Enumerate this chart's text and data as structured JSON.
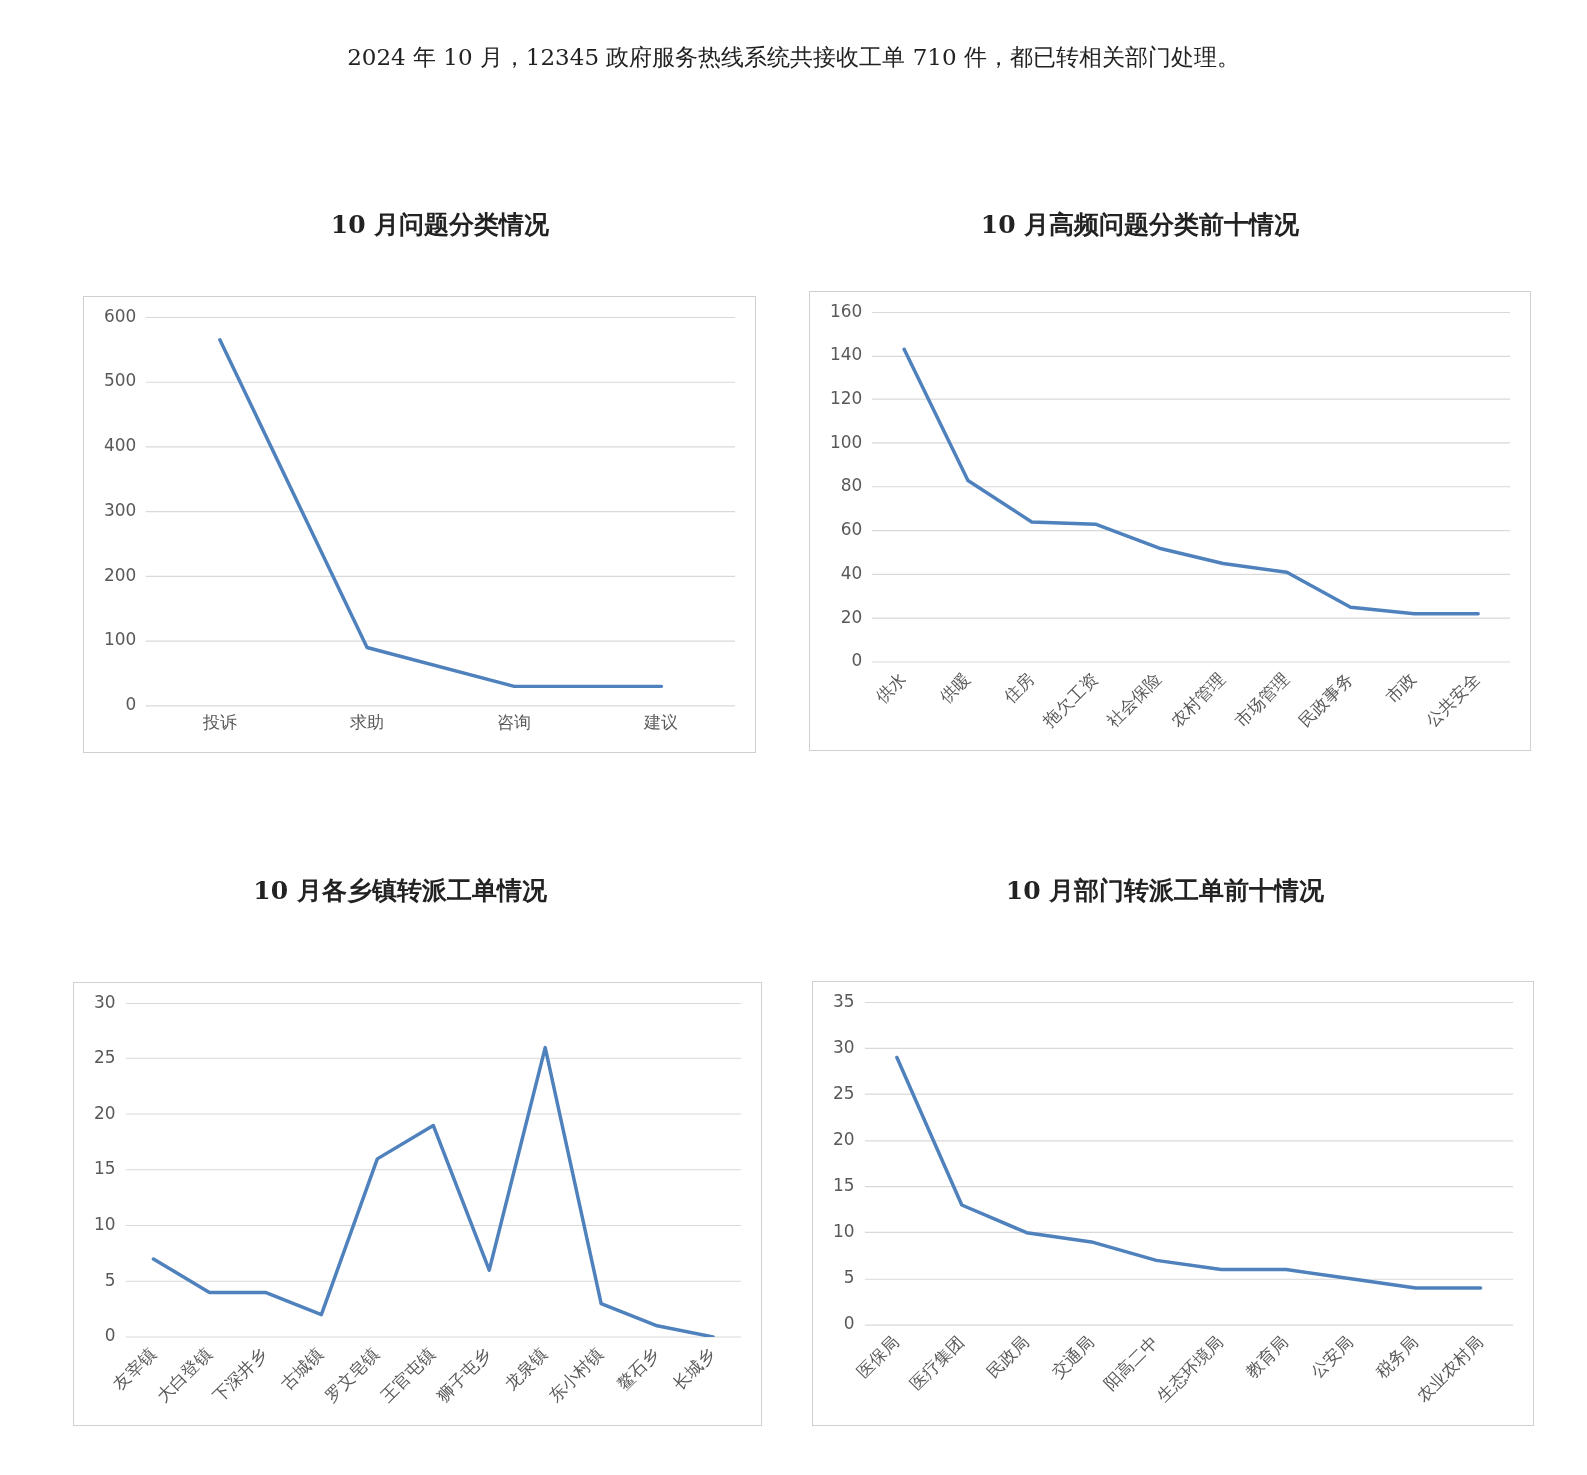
{
  "chart_data": [
    {
      "type": "other",
      "title": "2024 年 10 月，12345 政府服务热线系统共接收工单 710 件，都已转相关部门处理。"
    },
    {
      "type": "line",
      "title": "10 月问题分类情况",
      "categories": [
        "投诉",
        "求助",
        "咨询",
        "建议"
      ],
      "series": [
        {
          "color": "#4f81bd",
          "values": [
            565,
            90,
            30,
            30
          ]
        }
      ],
      "ylim": [
        0,
        600
      ],
      "yticks": [
        0,
        100,
        200,
        300,
        400,
        500,
        600
      ],
      "grid": "y",
      "marker": "none"
    },
    {
      "type": "line",
      "title": "10 月高频问题分类前十情况",
      "categories": [
        "供水",
        "供暖",
        "住房",
        "拖欠工资",
        "社会保险",
        "农村管理",
        "市场管理",
        "民政事务",
        "市政",
        "公共安全"
      ],
      "series": [
        {
          "color": "#4f81bd",
          "values": [
            143,
            83,
            64,
            63,
            52,
            45,
            41,
            25,
            22,
            22
          ]
        }
      ],
      "ylim": [
        0,
        160
      ],
      "yticks": [
        0,
        20,
        40,
        60,
        80,
        100,
        120,
        140,
        160
      ],
      "grid": "y",
      "marker": "none"
    },
    {
      "type": "line",
      "title": "10 月各乡镇转派工单情况",
      "categories": [
        "友宰镇",
        "大白登镇",
        "下深井乡",
        "古城镇",
        "罗文皂镇",
        "王官屯镇",
        "狮子屯乡",
        "龙泉镇",
        "东小村镇",
        "鳌石乡",
        "长城乡"
      ],
      "series": [
        {
          "color": "#4f81bd",
          "values": [
            7,
            4,
            4,
            2,
            16,
            19,
            6,
            26,
            3,
            1,
            0
          ]
        }
      ],
      "ylim": [
        0,
        30
      ],
      "yticks": [
        0,
        5,
        10,
        15,
        20,
        25,
        30
      ],
      "grid": "y",
      "marker": "none"
    },
    {
      "type": "line",
      "title": "10 月部门转派工单前十情况",
      "categories": [
        "医保局",
        "医疗集团",
        "民政局",
        "交通局",
        "阳高二中",
        "生态环境局",
        "教育局",
        "公安局",
        "税务局",
        "农业农村局"
      ],
      "series": [
        {
          "color": "#4f81bd",
          "values": [
            29,
            13,
            10,
            9,
            7,
            6,
            6,
            5,
            4,
            4
          ]
        }
      ],
      "ylim": [
        0,
        35
      ],
      "yticks": [
        0,
        5,
        10,
        15,
        20,
        25,
        30,
        35
      ],
      "grid": "y",
      "marker": "none"
    }
  ]
}
